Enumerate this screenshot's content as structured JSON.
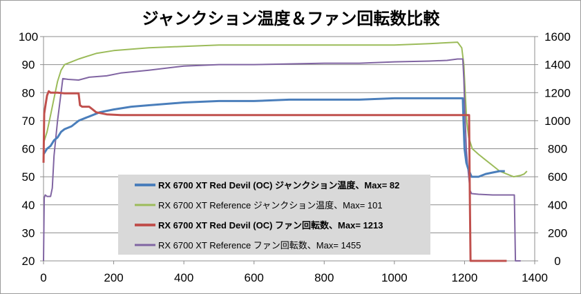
{
  "chart_data": {
    "type": "line",
    "title": "ジャンクション温度＆ファン回転数比較",
    "xlabel": "",
    "ylabel": "",
    "y2label": "",
    "xlim": [
      0,
      1400
    ],
    "ylim": [
      20,
      100
    ],
    "y2lim": [
      0,
      1600
    ],
    "x_ticks": [
      "0",
      "200",
      "400",
      "600",
      "800",
      "1000",
      "1200",
      "1400"
    ],
    "y_ticks": [
      "20",
      "30",
      "40",
      "50",
      "60",
      "70",
      "80",
      "90",
      "100"
    ],
    "y2_ticks": [
      "0",
      "200",
      "400",
      "600",
      "800",
      "1000",
      "1200",
      "1400",
      "1600"
    ],
    "grid": "horizontal",
    "legend": "center (inside plot area)",
    "series": [
      {
        "name": "RX 6700 XT Red Devil (OC) ジャンクション温度、Max= 82",
        "axis": "left",
        "color": "#4a7ebb",
        "width": 3,
        "bold": true,
        "points": [
          [
            0,
            58
          ],
          [
            10,
            60
          ],
          [
            20,
            61
          ],
          [
            30,
            63
          ],
          [
            40,
            64
          ],
          [
            50,
            66
          ],
          [
            60,
            67
          ],
          [
            80,
            68
          ],
          [
            100,
            70
          ],
          [
            120,
            71
          ],
          [
            140,
            72
          ],
          [
            160,
            73
          ],
          [
            200,
            74
          ],
          [
            250,
            75
          ],
          [
            300,
            75.5
          ],
          [
            350,
            76
          ],
          [
            400,
            76.5
          ],
          [
            500,
            77
          ],
          [
            600,
            77
          ],
          [
            700,
            77.5
          ],
          [
            800,
            77.5
          ],
          [
            900,
            77.5
          ],
          [
            1000,
            78
          ],
          [
            1100,
            78
          ],
          [
            1195,
            78
          ],
          [
            1197,
            70
          ],
          [
            1200,
            60
          ],
          [
            1205,
            55
          ],
          [
            1210,
            53
          ],
          [
            1220,
            50
          ],
          [
            1240,
            50
          ],
          [
            1260,
            51
          ],
          [
            1280,
            51.5
          ],
          [
            1300,
            52
          ],
          [
            1315,
            52
          ]
        ]
      },
      {
        "name": "RX 6700 XT Reference ジャンクション温度、Max= 101",
        "axis": "left",
        "color": "#9bbb59",
        "width": 2,
        "bold": false,
        "points": [
          [
            0,
            62
          ],
          [
            10,
            66
          ],
          [
            20,
            72
          ],
          [
            30,
            78
          ],
          [
            40,
            84
          ],
          [
            50,
            88
          ],
          [
            60,
            90
          ],
          [
            80,
            91
          ],
          [
            100,
            92
          ],
          [
            150,
            94
          ],
          [
            200,
            95
          ],
          [
            300,
            96
          ],
          [
            400,
            96.5
          ],
          [
            500,
            97
          ],
          [
            600,
            97
          ],
          [
            700,
            97
          ],
          [
            800,
            97
          ],
          [
            900,
            97
          ],
          [
            1000,
            97
          ],
          [
            1100,
            97.5
          ],
          [
            1180,
            98
          ],
          [
            1192,
            96
          ],
          [
            1198,
            90
          ],
          [
            1202,
            80
          ],
          [
            1206,
            70
          ],
          [
            1212,
            64
          ],
          [
            1222,
            60
          ],
          [
            1240,
            58
          ],
          [
            1260,
            56
          ],
          [
            1280,
            54
          ],
          [
            1300,
            52
          ],
          [
            1320,
            51
          ],
          [
            1340,
            50
          ],
          [
            1360,
            50.5
          ],
          [
            1370,
            51
          ],
          [
            1378,
            52
          ]
        ]
      },
      {
        "name": "RX 6700 XT Red Devil (OC) ファン回転数、Max= 1213",
        "axis": "right",
        "color": "#c0504d",
        "width": 3,
        "bold": true,
        "points": [
          [
            0,
            700
          ],
          [
            2,
            1050
          ],
          [
            5,
            1100
          ],
          [
            10,
            1180
          ],
          [
            15,
            1210
          ],
          [
            20,
            1200
          ],
          [
            40,
            1200
          ],
          [
            60,
            1195
          ],
          [
            80,
            1195
          ],
          [
            100,
            1195
          ],
          [
            104,
            1110
          ],
          [
            110,
            1100
          ],
          [
            130,
            1100
          ],
          [
            140,
            1080
          ],
          [
            150,
            1060
          ],
          [
            180,
            1045
          ],
          [
            220,
            1040
          ],
          [
            300,
            1040
          ],
          [
            400,
            1040
          ],
          [
            500,
            1040
          ],
          [
            600,
            1040
          ],
          [
            700,
            1040
          ],
          [
            800,
            1040
          ],
          [
            900,
            1040
          ],
          [
            1000,
            1040
          ],
          [
            1100,
            1040
          ],
          [
            1200,
            1040
          ],
          [
            1213,
            1040
          ],
          [
            1215,
            500
          ],
          [
            1217,
            0
          ],
          [
            1320,
            0
          ]
        ]
      },
      {
        "name": "RX 6700 XT Reference ファン回転数、Max= 1455",
        "axis": "right",
        "color": "#8064a2",
        "width": 2,
        "bold": false,
        "points": [
          [
            0,
            0
          ],
          [
            2,
            450
          ],
          [
            5,
            470
          ],
          [
            10,
            460
          ],
          [
            20,
            460
          ],
          [
            25,
            520
          ],
          [
            30,
            750
          ],
          [
            40,
            1000
          ],
          [
            50,
            1200
          ],
          [
            55,
            1300
          ],
          [
            70,
            1295
          ],
          [
            100,
            1290
          ],
          [
            130,
            1310
          ],
          [
            180,
            1320
          ],
          [
            220,
            1340
          ],
          [
            300,
            1360
          ],
          [
            400,
            1390
          ],
          [
            500,
            1400
          ],
          [
            600,
            1400
          ],
          [
            700,
            1405
          ],
          [
            800,
            1410
          ],
          [
            900,
            1410
          ],
          [
            1000,
            1420
          ],
          [
            1100,
            1425
          ],
          [
            1150,
            1430
          ],
          [
            1180,
            1440
          ],
          [
            1195,
            1440
          ],
          [
            1198,
            1300
          ],
          [
            1202,
            1000
          ],
          [
            1205,
            800
          ],
          [
            1208,
            700
          ],
          [
            1212,
            600
          ],
          [
            1216,
            500
          ],
          [
            1220,
            480
          ],
          [
            1240,
            475
          ],
          [
            1280,
            470
          ],
          [
            1320,
            470
          ],
          [
            1342,
            470
          ],
          [
            1345,
            0
          ],
          [
            1360,
            0
          ]
        ]
      }
    ]
  }
}
